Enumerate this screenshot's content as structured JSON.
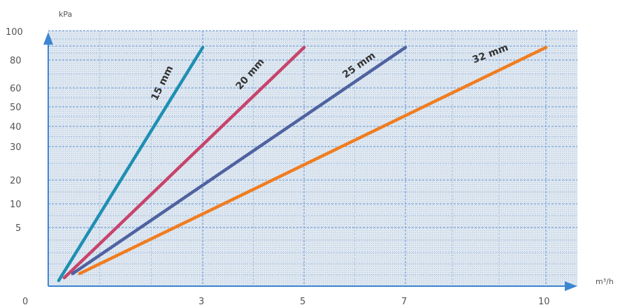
{
  "chart_data": {
    "type": "line",
    "xlabel": "m³/h",
    "ylabel": "kPa",
    "y_ticks": [
      "100",
      "80",
      "60",
      "50",
      "40",
      "30",
      "20",
      "10",
      "5"
    ],
    "x_ticks": [
      "0",
      "3",
      "5",
      "7",
      "10"
    ],
    "grid": true,
    "colors": {
      "background": "#d8e4ee",
      "grid": "#88aede",
      "axis": "#3d86d0"
    },
    "series": [
      {
        "name": "15 mm",
        "color": "#1f8fb3",
        "x": [
          0.3,
          3.0
        ],
        "y": [
          0,
          90
        ]
      },
      {
        "name": "20 mm",
        "color": "#c8436b",
        "x": [
          0.4,
          5.0
        ],
        "y": [
          0,
          90
        ]
      },
      {
        "name": "25 mm",
        "color": "#4f62a0",
        "x": [
          0.5,
          7.0
        ],
        "y": [
          0,
          90
        ]
      },
      {
        "name": "32 mm",
        "color": "#f07d20",
        "x": [
          0.6,
          10.0
        ],
        "y": [
          0,
          90
        ]
      }
    ]
  }
}
